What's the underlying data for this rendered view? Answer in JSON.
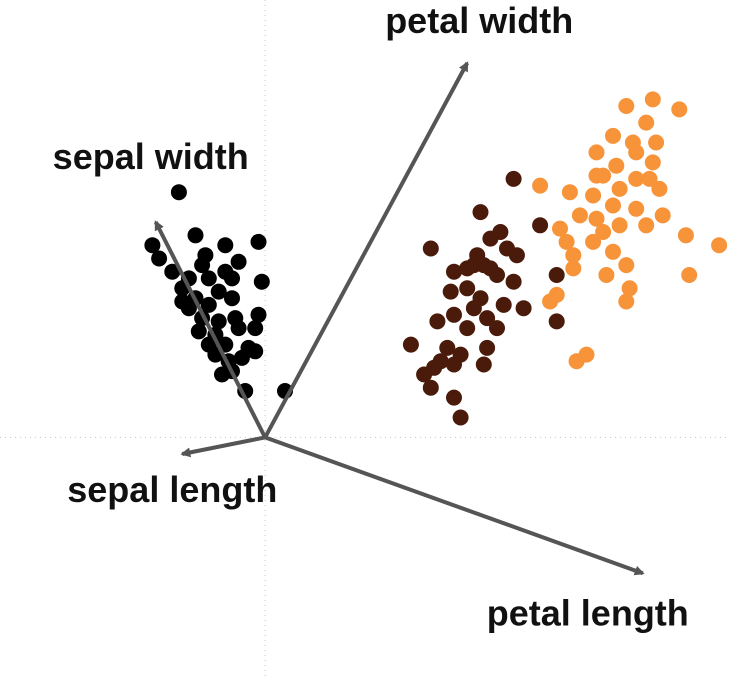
{
  "chart_data": {
    "type": "scatter",
    "title": "",
    "xlabel": "",
    "ylabel": "",
    "xlim": [
      -4,
      7
    ],
    "ylim": [
      -3.6,
      6.6
    ],
    "grid": false,
    "legend": "none",
    "origin_guides": true,
    "loadings": [
      {
        "name": "sepal length",
        "x": -1.25,
        "y": -0.25
      },
      {
        "name": "sepal width",
        "x": -1.65,
        "y": 3.25
      },
      {
        "name": "petal width",
        "x": 3.05,
        "y": 5.65
      },
      {
        "name": "petal length",
        "x": 5.7,
        "y": -2.05
      }
    ],
    "series": [
      {
        "color": "#000000",
        "points": [
          [
            -1.3,
            3.7
          ],
          [
            -1.6,
            2.7
          ],
          [
            -1.7,
            2.9
          ],
          [
            -1.05,
            3.05
          ],
          [
            -0.6,
            2.9
          ],
          [
            -0.1,
            2.95
          ],
          [
            -0.6,
            2.5
          ],
          [
            -0.4,
            2.65
          ],
          [
            -0.05,
            2.35
          ],
          [
            -0.85,
            2.4
          ],
          [
            -1.15,
            2.4
          ],
          [
            -1.4,
            2.5
          ],
          [
            -0.95,
            2.6
          ],
          [
            -0.7,
            2.2
          ],
          [
            -1.25,
            2.25
          ],
          [
            -1.05,
            2.1
          ],
          [
            -0.85,
            2.0
          ],
          [
            -0.5,
            2.1
          ],
          [
            -1.15,
            1.95
          ],
          [
            -0.95,
            1.8
          ],
          [
            -0.7,
            1.75
          ],
          [
            -0.45,
            1.8
          ],
          [
            -1.0,
            1.6
          ],
          [
            -0.75,
            1.55
          ],
          [
            -0.4,
            1.65
          ],
          [
            -0.15,
            1.65
          ],
          [
            -0.85,
            1.4
          ],
          [
            -0.6,
            1.4
          ],
          [
            -0.25,
            1.35
          ],
          [
            -0.55,
            1.15
          ],
          [
            -0.75,
            1.25
          ],
          [
            -0.35,
            1.2
          ],
          [
            -0.15,
            1.3
          ],
          [
            -0.5,
            1.0
          ],
          [
            -0.65,
            0.95
          ],
          [
            -0.5,
            2.4
          ],
          [
            -0.1,
            1.85
          ],
          [
            -1.25,
            2.05
          ],
          [
            -0.3,
            0.7
          ],
          [
            0.3,
            0.7
          ],
          [
            -0.9,
            2.75
          ]
        ]
      },
      {
        "color": "#4a1a0a",
        "points": [
          [
            3.75,
            3.9
          ],
          [
            3.65,
            2.85
          ],
          [
            3.25,
            3.4
          ],
          [
            3.4,
            3.0
          ],
          [
            3.55,
            3.1
          ],
          [
            3.3,
            2.6
          ],
          [
            3.8,
            2.75
          ],
          [
            3.15,
            2.6
          ],
          [
            2.5,
            2.85
          ],
          [
            3.05,
            2.25
          ],
          [
            3.25,
            2.1
          ],
          [
            3.5,
            2.45
          ],
          [
            2.8,
            2.2
          ],
          [
            2.85,
            2.5
          ],
          [
            3.05,
            2.55
          ],
          [
            3.2,
            2.75
          ],
          [
            3.4,
            2.55
          ],
          [
            3.75,
            2.35
          ],
          [
            2.6,
            1.75
          ],
          [
            2.85,
            1.85
          ],
          [
            3.35,
            1.8
          ],
          [
            3.6,
            2.0
          ],
          [
            3.05,
            1.65
          ],
          [
            3.5,
            1.65
          ],
          [
            2.75,
            1.35
          ],
          [
            2.95,
            1.25
          ],
          [
            3.35,
            1.35
          ],
          [
            2.85,
            1.1
          ],
          [
            2.65,
            1.15
          ],
          [
            3.3,
            1.1
          ],
          [
            2.2,
            1.4
          ],
          [
            2.4,
            0.95
          ],
          [
            2.55,
            1.05
          ],
          [
            2.5,
            0.75
          ],
          [
            2.85,
            0.6
          ],
          [
            4.4,
            1.75
          ],
          [
            4.4,
            2.45
          ],
          [
            4.15,
            3.2
          ],
          [
            2.95,
            0.3
          ],
          [
            3.9,
            1.95
          ],
          [
            3.15,
            1.95
          ]
        ]
      },
      {
        "color": "#f7943a",
        "points": [
          [
            5.85,
            5.1
          ],
          [
            5.45,
            5.0
          ],
          [
            6.25,
            4.95
          ],
          [
            5.75,
            4.75
          ],
          [
            5.55,
            4.45
          ],
          [
            5.9,
            4.45
          ],
          [
            5.25,
            4.55
          ],
          [
            5.0,
            4.3
          ],
          [
            5.6,
            4.3
          ],
          [
            5.85,
            4.15
          ],
          [
            5.3,
            4.1
          ],
          [
            5.0,
            3.95
          ],
          [
            4.95,
            3.65
          ],
          [
            5.35,
            3.75
          ],
          [
            5.6,
            3.9
          ],
          [
            5.95,
            3.75
          ],
          [
            5.25,
            3.5
          ],
          [
            4.6,
            3.7
          ],
          [
            4.75,
            3.35
          ],
          [
            5.0,
            3.3
          ],
          [
            5.6,
            3.45
          ],
          [
            5.75,
            3.2
          ],
          [
            6.0,
            3.35
          ],
          [
            4.45,
            3.15
          ],
          [
            5.35,
            3.2
          ],
          [
            5.1,
            3.1
          ],
          [
            4.55,
            2.95
          ],
          [
            4.95,
            2.95
          ],
          [
            5.25,
            2.8
          ],
          [
            4.65,
            2.75
          ],
          [
            5.45,
            2.6
          ],
          [
            5.15,
            2.45
          ],
          [
            6.35,
            3.05
          ],
          [
            6.85,
            2.9
          ],
          [
            6.4,
            2.45
          ],
          [
            5.5,
            2.25
          ],
          [
            4.65,
            2.55
          ],
          [
            4.4,
            2.15
          ],
          [
            4.3,
            2.05
          ],
          [
            5.45,
            2.05
          ],
          [
            4.85,
            1.25
          ],
          [
            4.7,
            1.15
          ],
          [
            4.15,
            3.8
          ],
          [
            5.8,
            3.9
          ],
          [
            5.1,
            3.95
          ]
        ]
      }
    ]
  }
}
